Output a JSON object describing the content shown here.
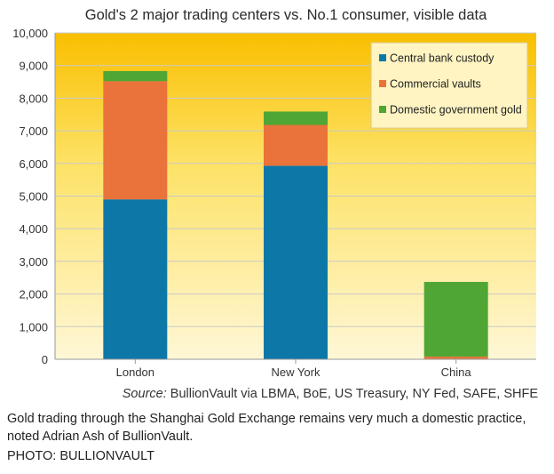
{
  "colors": {
    "plot_top": "#f9bf00",
    "plot_mid": "#fde266",
    "plot_bottom": "#fef7d6",
    "central_bank": "#0d78a8",
    "commercial": "#e9733a",
    "domestic": "#4fa634",
    "grid": "#c9c9c9",
    "legend_bg": "#fff4c2"
  },
  "chart_data": {
    "type": "bar",
    "stacked": true,
    "title": "Gold's 2 major trading centers vs. No.1 consumer, visible data",
    "categories": [
      "London",
      "New York",
      "China"
    ],
    "series": [
      {
        "name": "Central bank custody",
        "values": [
          4900,
          5930,
          0
        ]
      },
      {
        "name": "Commercial vaults",
        "values": [
          3620,
          1250,
          80
        ]
      },
      {
        "name": "Domestic government gold",
        "values": [
          310,
          410,
          2290
        ]
      }
    ],
    "ylim": [
      0,
      10000
    ],
    "yticks": [
      "0",
      "1,000",
      "2,000",
      "3,000",
      "4,000",
      "5,000",
      "6,000",
      "7,000",
      "8,000",
      "9,000",
      "10,000"
    ],
    "xlabel": "",
    "ylabel": "",
    "grid": true,
    "legend_position": "top-right",
    "source_prefix": "Source:",
    "source_text": " BullionVault via LBMA, BoE, US Treasury, NY Fed, SAFE, SHFE"
  },
  "caption": "Gold trading through the Shanghai Gold Exchange remains very much a domestic practice, noted Adrian Ash of BullionVault.",
  "photo_credit": "PHOTO: BULLIONVAULT"
}
